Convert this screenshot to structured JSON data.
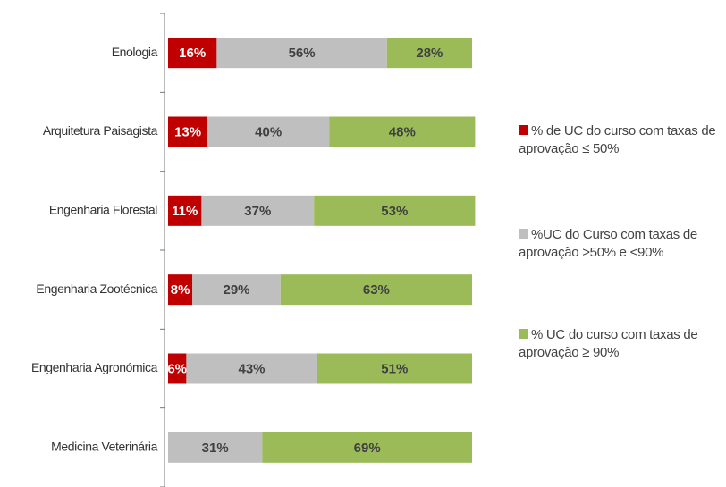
{
  "chart_data": {
    "type": "bar",
    "orientation": "horizontal",
    "stacked": true,
    "categories": [
      "Enologia",
      "Arquitetura Paisagista",
      "Engenharia Florestal",
      "Engenharia Zootécnica",
      "Engenharia Agronómica",
      "Medicina Veterinária"
    ],
    "xlim": [
      0,
      100
    ],
    "series": [
      {
        "name": "% de UC do curso com taxas de aprovação ≤ 50%",
        "color": "#c00000",
        "label_color": "#ffffff",
        "values": [
          16,
          13,
          11,
          8,
          6,
          0
        ],
        "value_labels": [
          "16%",
          "13%",
          "11%",
          "8%",
          "6%",
          null
        ]
      },
      {
        "name": "%UC do Curso com taxas de aprovação >50% e <90%",
        "color": "#bfbfbf",
        "label_color": "#404040",
        "values": [
          56,
          40,
          37,
          29,
          43,
          31
        ],
        "value_labels": [
          "56%",
          "40%",
          "37%",
          "29%",
          "43%",
          "31%"
        ]
      },
      {
        "name": "% UC do curso com taxas de aprovação ≥ 90%",
        "color": "#9bbb59",
        "label_color": "#404040",
        "values": [
          28,
          48,
          53,
          63,
          51,
          69
        ],
        "value_labels": [
          "28%",
          "48%",
          "53%",
          "63%",
          "51%",
          "69%"
        ]
      }
    ],
    "legend": "right"
  }
}
